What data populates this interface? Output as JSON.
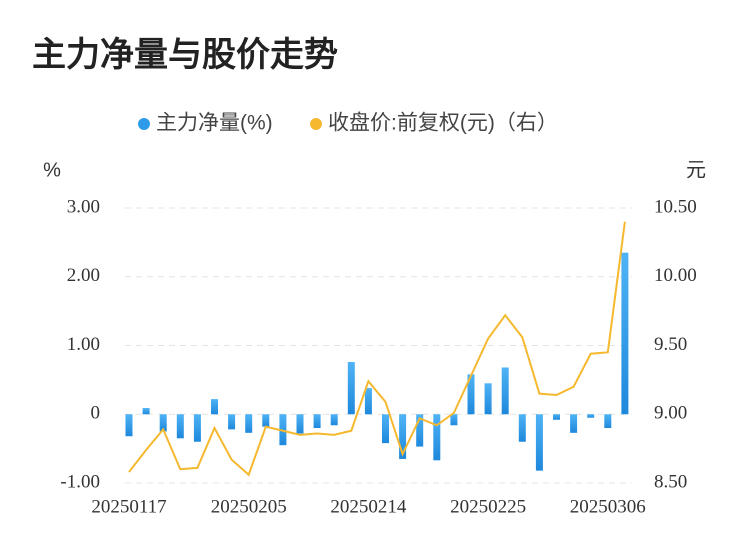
{
  "chart_data": {
    "type": "bar_line",
    "title": "主力净量与股价走势",
    "y_axis_label": "%",
    "y2_axis_label": "元",
    "categories": [
      "20250117",
      null,
      null,
      null,
      null,
      null,
      null,
      "20250205",
      null,
      null,
      null,
      null,
      null,
      null,
      "20250214",
      null,
      null,
      null,
      null,
      null,
      null,
      "20250225",
      null,
      null,
      null,
      null,
      null,
      null,
      "20250306",
      null
    ],
    "series": [
      {
        "name": "主力净量(%)",
        "color": "#2e9be8",
        "type": "bar",
        "values": [
          -0.32,
          0.09,
          -0.25,
          -0.35,
          -0.4,
          0.22,
          -0.22,
          -0.27,
          -0.18,
          -0.45,
          -0.28,
          -0.2,
          -0.16,
          0.76,
          0.38,
          -0.42,
          -0.65,
          -0.47,
          -0.67,
          -0.16,
          0.58,
          0.45,
          0.68,
          -0.4,
          -0.82,
          -0.08,
          -0.27,
          -0.05,
          -0.2,
          2.35
        ]
      },
      {
        "name": "收盘价:前复权(元)（右）",
        "color": "#f5b82e",
        "type": "line",
        "axis": "y2",
        "values": [
          8.58,
          8.74,
          8.89,
          8.6,
          8.61,
          8.9,
          8.67,
          8.56,
          8.91,
          8.88,
          8.85,
          8.86,
          8.85,
          8.88,
          9.24,
          9.09,
          8.71,
          8.97,
          8.92,
          9.01,
          9.28,
          9.55,
          9.72,
          9.56,
          9.15,
          9.14,
          9.2,
          9.44,
          9.45,
          10.4
        ]
      }
    ],
    "ylim": [
      -1,
      3
    ],
    "yticks": [
      {
        "value": -1,
        "label": "-1.00"
      },
      0,
      {
        "value": 1,
        "label": "1.00"
      },
      {
        "value": 2,
        "label": "2.00"
      },
      {
        "value": 3,
        "label": "3.00"
      }
    ],
    "y2lim": [
      8.5,
      10.5
    ],
    "y2ticks": [
      {
        "value": 8.5,
        "label": "8.50"
      },
      {
        "value": 9,
        "label": "9.00"
      },
      {
        "value": 9.5,
        "label": "9.50"
      },
      {
        "value": 10,
        "label": "10.00"
      },
      {
        "value": 10.5,
        "label": "10.50"
      }
    ],
    "grid": true
  }
}
